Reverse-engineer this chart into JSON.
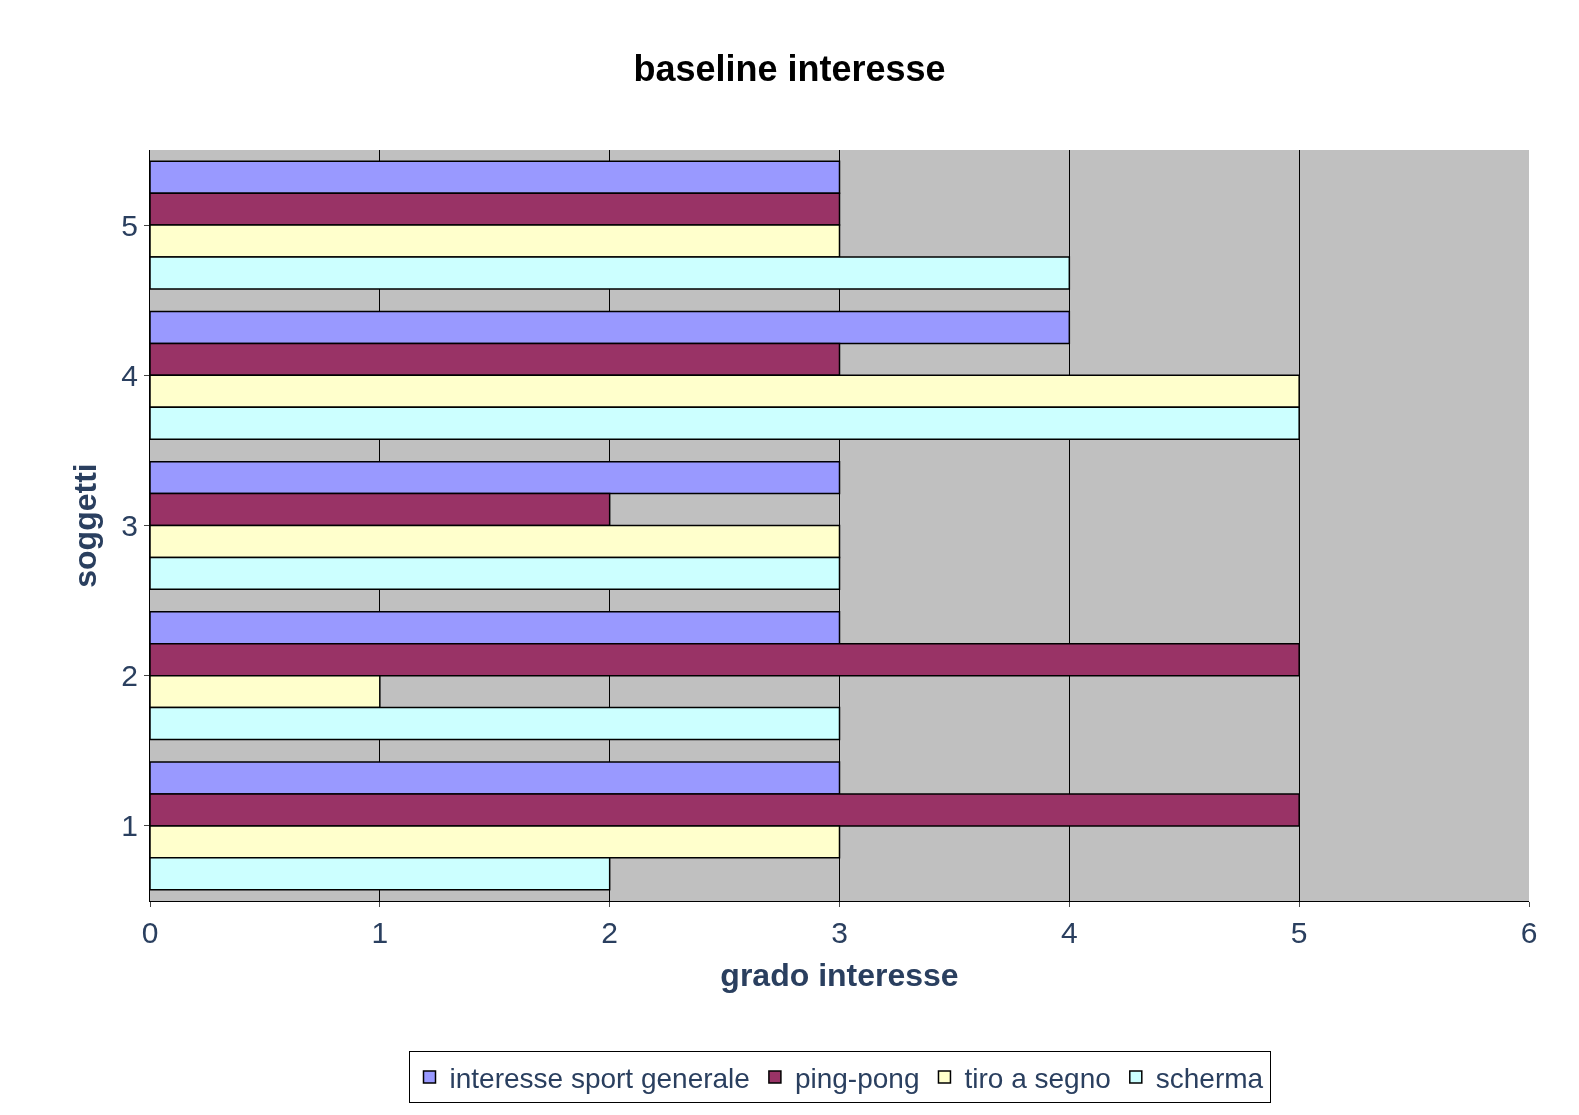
{
  "chart_data": {
    "type": "bar",
    "orientation": "horizontal",
    "title": "baseline interesse",
    "xlabel": "grado interesse",
    "ylabel": "soggetti",
    "categories": [
      "5",
      "4",
      "3",
      "2",
      "1"
    ],
    "series": [
      {
        "name": "interesse sport generale",
        "color": "#9999ff",
        "values": [
          3,
          4,
          3,
          3,
          3
        ]
      },
      {
        "name": "ping-pong",
        "color": "#993366",
        "values": [
          3,
          3,
          2,
          5,
          5
        ]
      },
      {
        "name": "tiro a segno",
        "color": "#ffffcc",
        "values": [
          3,
          5,
          3,
          1,
          3
        ]
      },
      {
        "name": "scherma",
        "color": "#ccffff",
        "values": [
          4,
          5,
          3,
          3,
          2
        ]
      }
    ],
    "xlim": [
      0,
      6
    ],
    "xticks": [
      0,
      1,
      2,
      3,
      4,
      5,
      6
    ],
    "grid": "x",
    "legend": "bottom"
  }
}
